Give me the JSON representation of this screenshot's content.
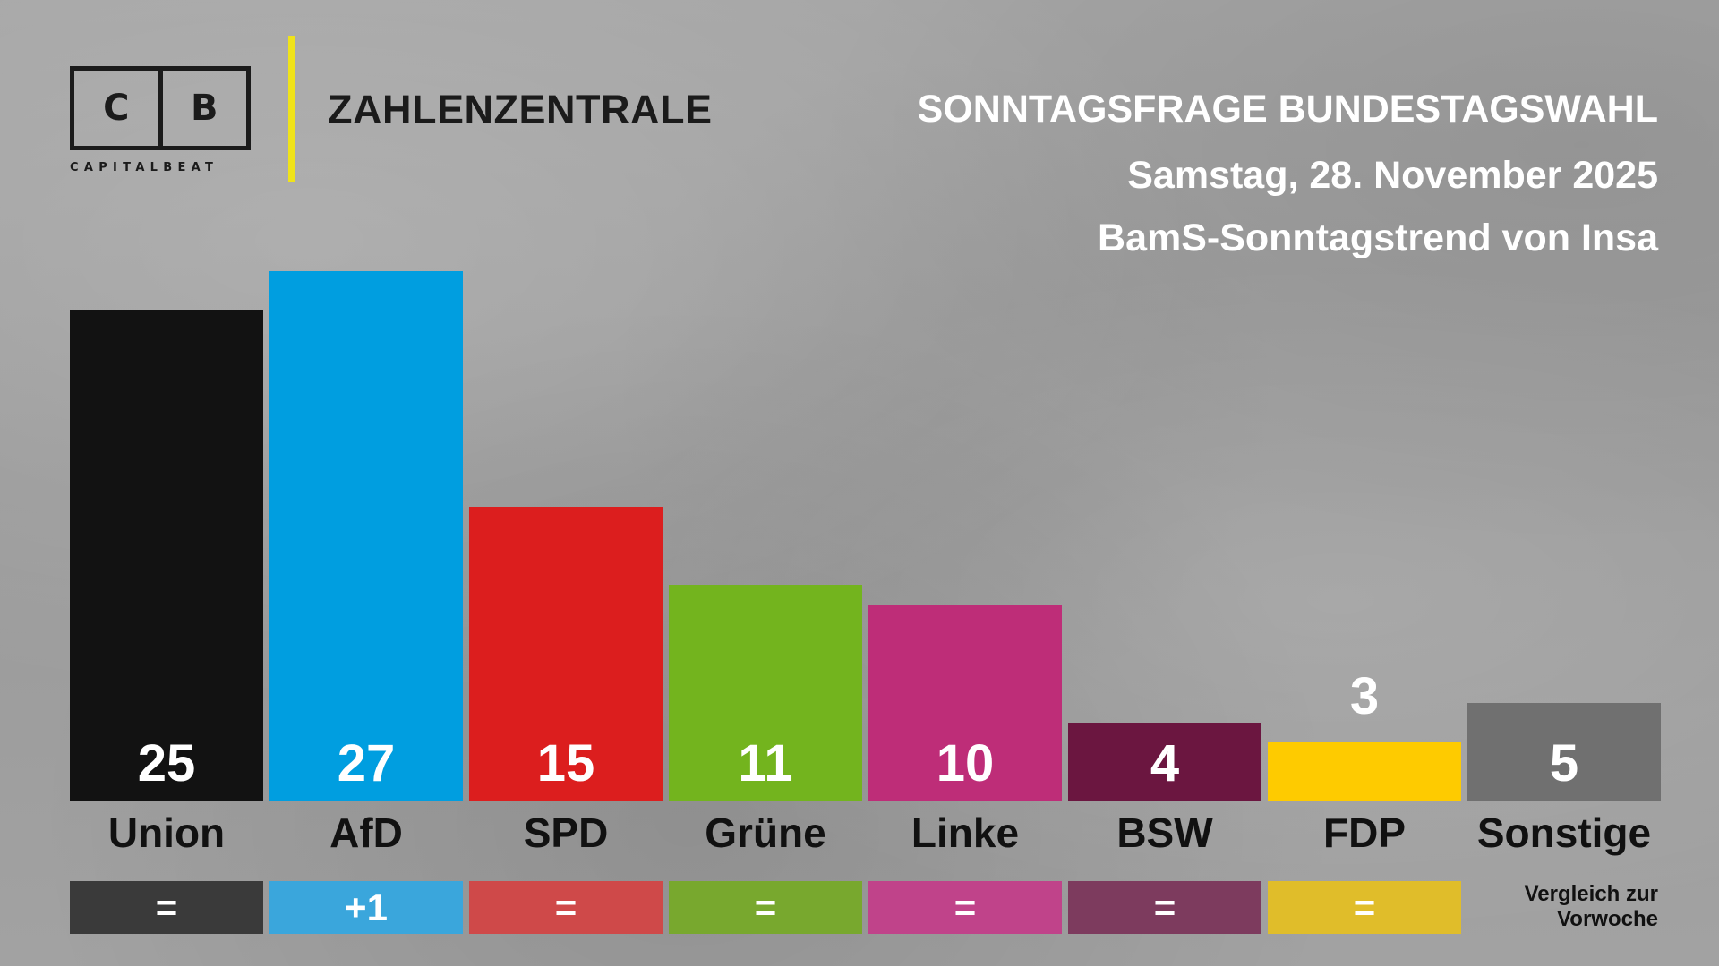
{
  "logo": {
    "left_letter": "C",
    "right_letter": "B",
    "subtitle": "CAPITALBEAT",
    "accent_color": "#f0e31a"
  },
  "brand": {
    "title": "ZAHLENZENTRALE"
  },
  "headline": {
    "title": "SONNTAGSFRAGE BUNDESTAGSWAHL",
    "date": "Samstag, 28. November 2025",
    "source": "BamS-Sonntagstrend von Insa"
  },
  "compare_note": {
    "line1": "Vergleich zur",
    "line2": "Vorwoche"
  },
  "chart_data": {
    "type": "bar",
    "categories": [
      "Union",
      "AfD",
      "SPD",
      "Grüne",
      "Linke",
      "BSW",
      "FDP",
      "Sonstige"
    ],
    "values": [
      25,
      27,
      15,
      11,
      10,
      4,
      3,
      5
    ],
    "value_labels": [
      "25",
      "27",
      "15",
      "11",
      "10",
      "4",
      "3",
      "5"
    ],
    "changes": [
      "=",
      "+1",
      "=",
      "=",
      "=",
      "=",
      "=",
      ""
    ],
    "colors": [
      "#121212",
      "#009ee0",
      "#dc1e1e",
      "#73b41e",
      "#be2d78",
      "#6b1640",
      "#fecb00",
      "#707070"
    ],
    "change_colors": [
      "#3a3a3a",
      "#3aa6dc",
      "#cf4949",
      "#78a82e",
      "#c0438a",
      "#7d3b5e",
      "#e0bd2a",
      ""
    ],
    "ylim": [
      0,
      27
    ],
    "title": "SONNTAGSFRAGE BUNDESTAGSWAHL",
    "xlabel": "",
    "ylabel": ""
  }
}
